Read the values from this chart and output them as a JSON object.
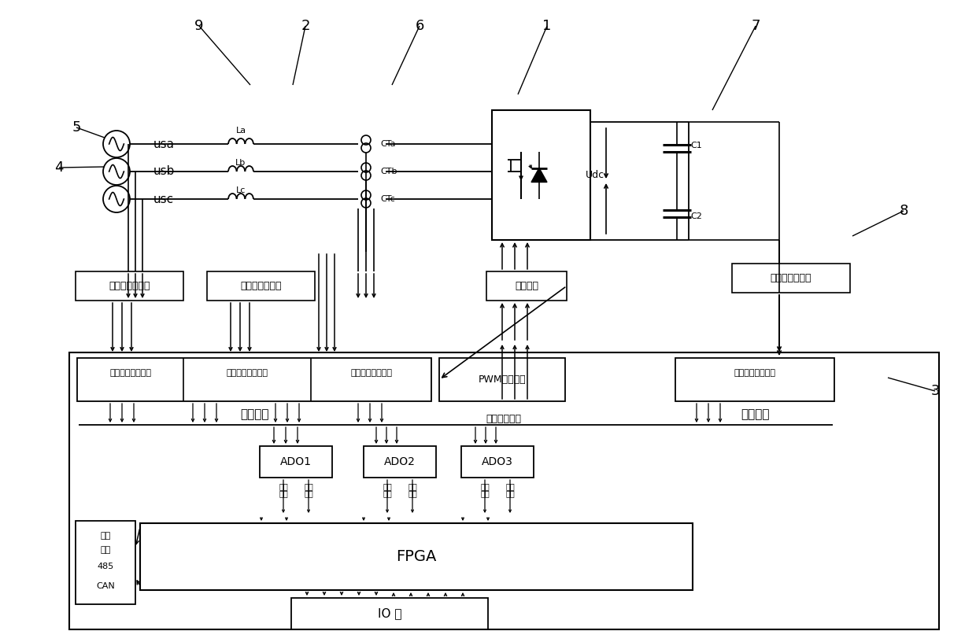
{
  "bg": "#ffffff",
  "labels": {
    "n1": "1",
    "n2": "2",
    "n3": "3",
    "n4": "4",
    "n5": "5",
    "n6": "6",
    "n7": "7",
    "n8": "8",
    "n9": "9",
    "usa": "usa",
    "usb": "usb",
    "usc": "usc",
    "La": "La",
    "Lb": "Lb",
    "Lc": "Lc",
    "CTa": "CTa",
    "CTb": "CTb",
    "CTc": "CTc",
    "Udc": "Udc",
    "C1": "C1",
    "C2": "C2",
    "drive": "驱动电路",
    "dc_sens": "直流电压互感器",
    "sys_sens": "系统电压互感器",
    "load_sens": "负载电流互感器",
    "sys_port": "系统电压采集端口",
    "load_port": "负载电流采集端口",
    "out_port": "输出电流采集端口",
    "pwm_port": "PWM输出端口",
    "dc_port": "直流电压采集端口",
    "cond": "调理电路",
    "sample_bus": "采样信号总线",
    "ADO1": "ADO1",
    "ADO2": "ADO2",
    "ADO3": "ADO3",
    "ctrl_bus": "控制",
    "ctrl_bus2": "总线",
    "data_bus": "数据",
    "data_bus2": "总线",
    "FPGA": "FPGA",
    "IO": "IO 口",
    "comm_line1": "通讯",
    "comm_line2": "接口",
    "comm_line3": "485",
    "comm_line4": "CAN"
  }
}
